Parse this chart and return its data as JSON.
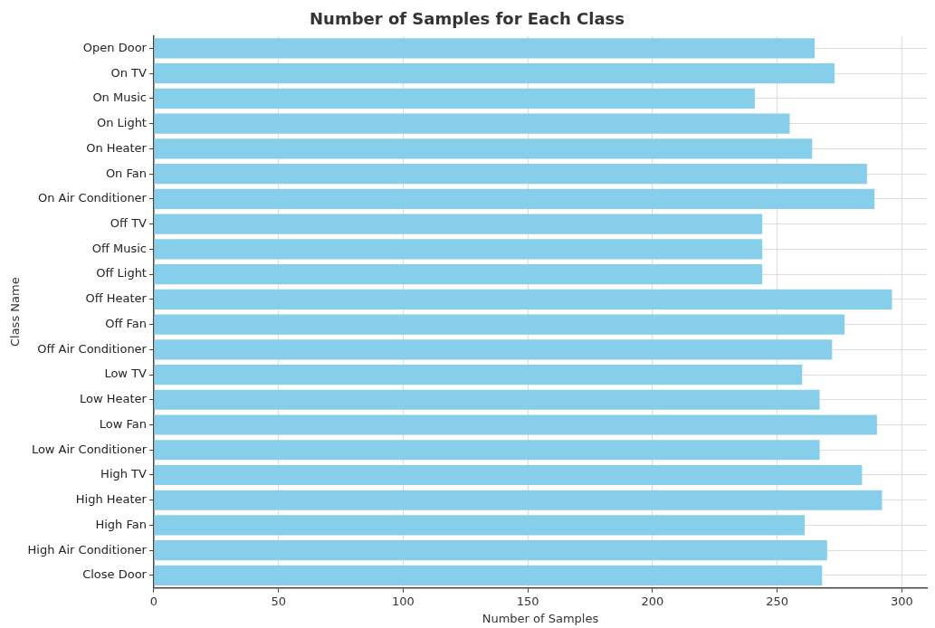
{
  "chart_data": {
    "type": "bar",
    "orientation": "horizontal",
    "title": "Number of Samples for Each Class",
    "xlabel": "Number of Samples",
    "ylabel": "Class Name",
    "categories": [
      "Open Door",
      "On TV",
      "On Music",
      "On Light",
      "On Heater",
      "On Fan",
      "On Air Conditioner",
      "Off TV",
      "Off Music",
      "Off Light",
      "Off Heater",
      "Off Fan",
      "Off Air Conditioner",
      "Low TV",
      "Low Heater",
      "Low Fan",
      "Low Air Conditioner",
      "High TV",
      "High Heater",
      "High Fan",
      "High Air Conditioner",
      "Close Door"
    ],
    "values": [
      265,
      273,
      241,
      255,
      264,
      286,
      289,
      244,
      244,
      244,
      296,
      277,
      272,
      260,
      267,
      290,
      267,
      284,
      292,
      261,
      270,
      268
    ],
    "color": "#87ceeb",
    "xlim": [
      0,
      310
    ],
    "xticks": [
      0,
      50,
      100,
      150,
      200,
      250,
      300
    ],
    "grid": true,
    "legend": false
  }
}
